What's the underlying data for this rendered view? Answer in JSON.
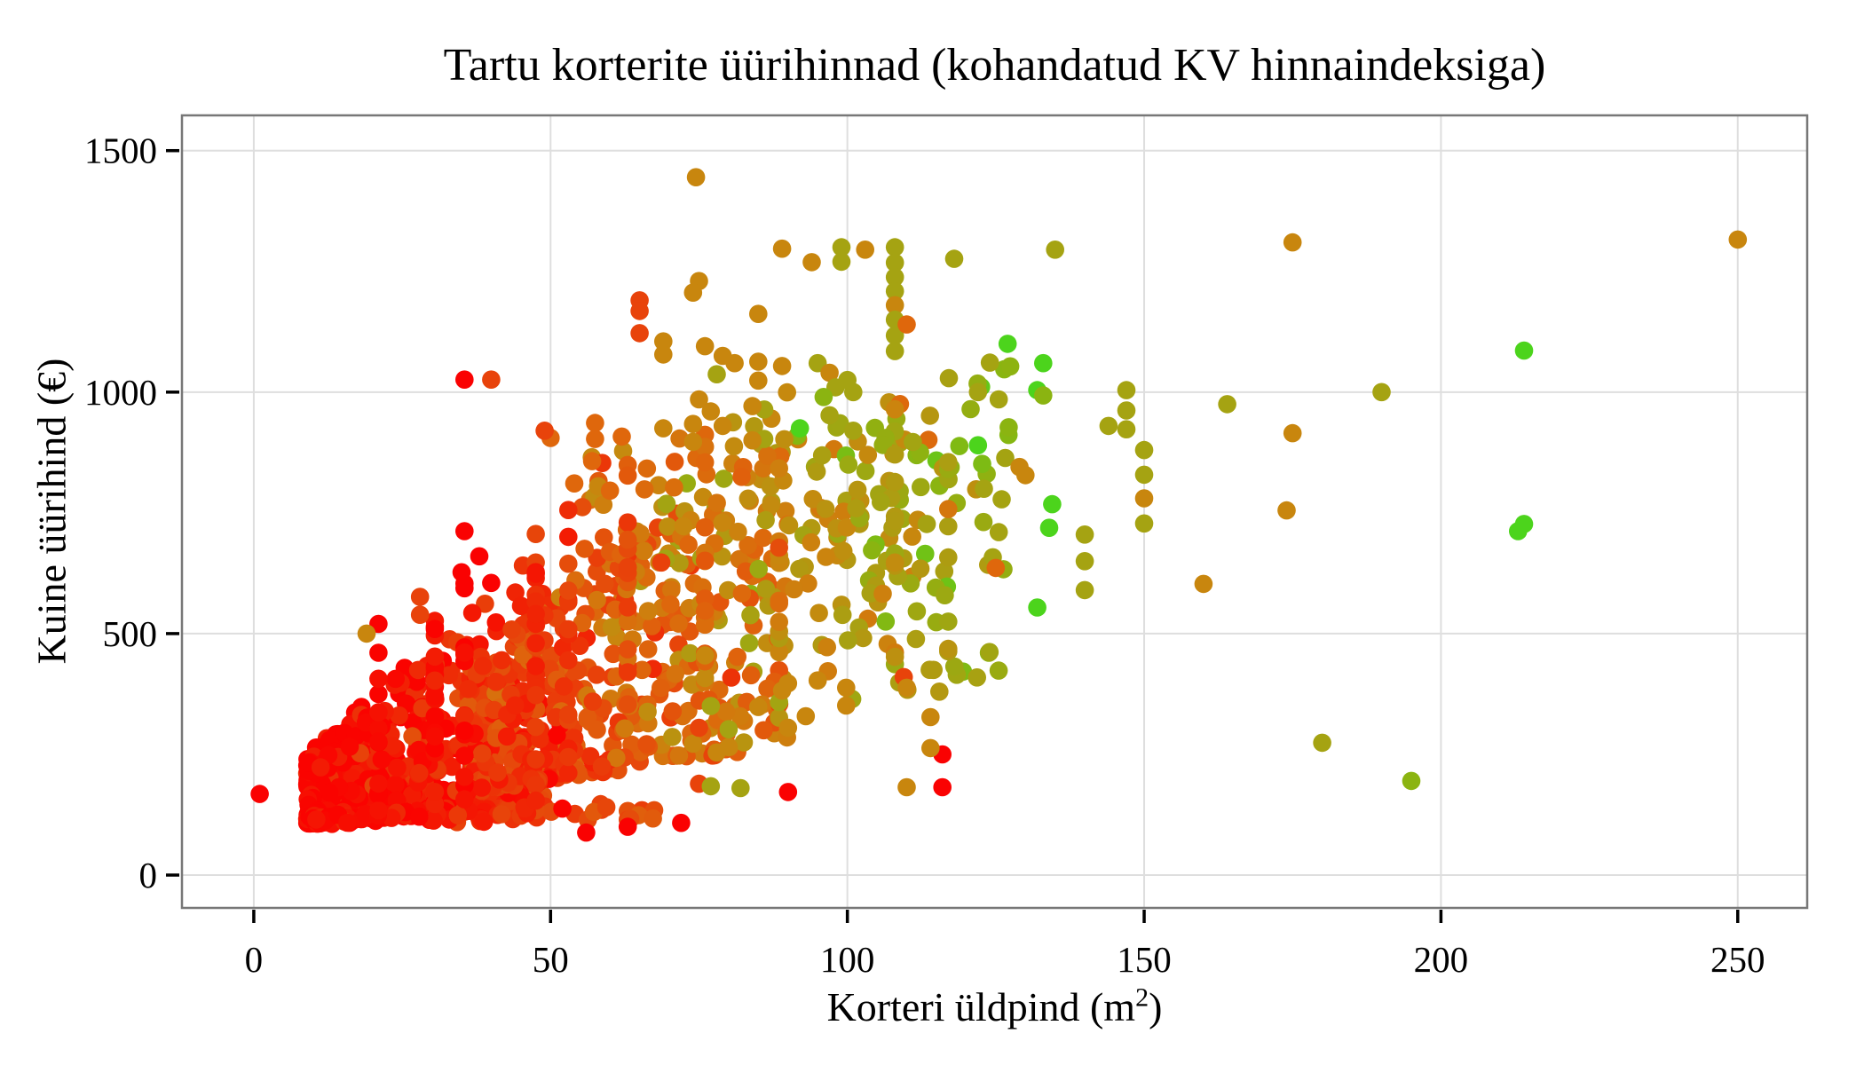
{
  "figure": {
    "title": "Tartu korterite üürihinnad (kohandatud KV hinnaindeksiga)",
    "y_axis_title": "Kuine üürihind (€)",
    "x_axis_title_main": "Korteri üldpind (m",
    "x_axis_title_sup": "2",
    "x_axis_title_end": ")"
  },
  "chart_data": {
    "type": "scatter",
    "title": "Tartu korterite üürihinnad (kohandatud KV hinnaindeksiga)",
    "xlabel": "Korteri üldpind (m2)",
    "ylabel": "Kuine üürihind (€)",
    "xlim": [
      -12.1,
      261.7
    ],
    "ylim": [
      -68,
      1573
    ],
    "x_ticks": [
      0,
      50,
      100,
      150,
      200,
      250
    ],
    "y_ticks": [
      0,
      500,
      1000,
      1500
    ],
    "grid": "major-only",
    "legend": "none",
    "style": {
      "grid_color": "#dedede",
      "border_color": "#777777",
      "tick_color": "#000000",
      "background": "#ffffff"
    },
    "palette": {
      "r": "#fa0202",
      "o2": "#e8430b",
      "o": "#df670c",
      "c": "#c8860e",
      "l": "#a5a312",
      "y": "#8bb411",
      "g": "#4cd41c"
    },
    "color_stops": [
      [
        0.0,
        "#fa0300"
      ],
      [
        0.14,
        "#f02505"
      ],
      [
        0.3,
        "#e64a0b"
      ],
      [
        0.44,
        "#dd690c"
      ],
      [
        0.57,
        "#c9860e"
      ],
      [
        0.7,
        "#a9a012"
      ],
      [
        0.82,
        "#8bb411"
      ],
      [
        1.0,
        "#4cd41c"
      ]
    ],
    "outlier_points": [
      [
        74.5,
        1445,
        "c"
      ],
      [
        250,
        1316,
        "c"
      ],
      [
        175,
        1310,
        "c"
      ],
      [
        135,
        1295,
        "l"
      ],
      [
        99,
        1300,
        "l"
      ],
      [
        99,
        1270,
        "l"
      ],
      [
        103,
        1295,
        "c"
      ],
      [
        94,
        1269,
        "c"
      ],
      [
        89,
        1297,
        "c"
      ],
      [
        108,
        1300,
        "l"
      ],
      [
        108,
        1268,
        "l"
      ],
      [
        108,
        1238,
        "l"
      ],
      [
        108,
        1209,
        "l"
      ],
      [
        108,
        1180,
        "c"
      ],
      [
        108,
        1150,
        "l"
      ],
      [
        108,
        1117,
        "l"
      ],
      [
        108,
        1085,
        "l"
      ],
      [
        110,
        1140,
        "o"
      ],
      [
        118,
        1276,
        "l"
      ],
      [
        75,
        1230,
        "c"
      ],
      [
        74,
        1206,
        "c"
      ],
      [
        65,
        1190,
        "o2"
      ],
      [
        65,
        1168,
        "o2"
      ],
      [
        65,
        1122,
        "o2"
      ],
      [
        69,
        1105,
        "c"
      ],
      [
        69,
        1078,
        "c"
      ],
      [
        85,
        1162,
        "c"
      ],
      [
        76,
        1095,
        "c"
      ],
      [
        79,
        1075,
        "c"
      ],
      [
        81,
        1060,
        "c"
      ],
      [
        78,
        1037,
        "l"
      ],
      [
        85,
        1063,
        "c"
      ],
      [
        85,
        1024,
        "c"
      ],
      [
        89,
        1054,
        "c"
      ],
      [
        95,
        1060,
        "l"
      ],
      [
        97,
        1040,
        "c"
      ],
      [
        98,
        1010,
        "l"
      ],
      [
        100,
        1025,
        "l"
      ],
      [
        101,
        1000,
        "l"
      ],
      [
        96,
        990,
        "y"
      ],
      [
        97,
        952,
        "l"
      ],
      [
        92,
        925,
        "g"
      ],
      [
        101,
        920,
        "l"
      ],
      [
        86,
        964,
        "l"
      ],
      [
        86,
        903,
        "l"
      ],
      [
        84,
        971,
        "c"
      ],
      [
        127,
        1100,
        "g"
      ],
      [
        133,
        1060,
        "g"
      ],
      [
        132,
        1004,
        "g"
      ],
      [
        133,
        993,
        "y"
      ],
      [
        124,
        1061,
        "l"
      ],
      [
        125.5,
        985,
        "l"
      ],
      [
        122,
        1000,
        "l"
      ],
      [
        214,
        1086,
        "g"
      ],
      [
        214,
        727,
        "g"
      ],
      [
        213,
        712,
        "g"
      ],
      [
        190,
        1000,
        "l"
      ],
      [
        164,
        975,
        "l"
      ],
      [
        175,
        915,
        "c"
      ],
      [
        174,
        755,
        "c"
      ],
      [
        160,
        603,
        "c"
      ],
      [
        180,
        274,
        "l"
      ],
      [
        195,
        195,
        "y"
      ],
      [
        147,
        1004,
        "l"
      ],
      [
        147,
        962,
        "l"
      ],
      [
        147,
        923,
        "l"
      ],
      [
        150,
        880,
        "l"
      ],
      [
        150,
        829,
        "l"
      ],
      [
        150,
        780,
        "c"
      ],
      [
        150,
        728,
        "l"
      ],
      [
        144,
        930,
        "l"
      ],
      [
        129,
        845,
        "c"
      ],
      [
        130,
        828,
        "c"
      ],
      [
        123,
        800,
        "l"
      ],
      [
        126,
        778,
        "l"
      ],
      [
        134.5,
        768,
        "g"
      ],
      [
        134,
        719,
        "g"
      ],
      [
        125.5,
        710,
        "l"
      ],
      [
        140,
        705,
        "l"
      ],
      [
        140,
        650,
        "l"
      ],
      [
        140,
        590,
        "l"
      ],
      [
        124.5,
        658,
        "l"
      ],
      [
        125,
        636,
        "o"
      ],
      [
        132,
        554,
        "g"
      ],
      [
        122,
        890,
        "g"
      ],
      [
        35.5,
        1026,
        "r"
      ],
      [
        40,
        1026,
        "o2"
      ],
      [
        1,
        168,
        "r"
      ],
      [
        90,
        172,
        "r"
      ],
      [
        116,
        250,
        "r"
      ],
      [
        116,
        182,
        "r"
      ],
      [
        82,
        180,
        "l"
      ],
      [
        110,
        182,
        "c"
      ],
      [
        114,
        263,
        "c"
      ],
      [
        114,
        327,
        "c"
      ],
      [
        63,
        100,
        "r"
      ],
      [
        56,
        88,
        "r"
      ],
      [
        72,
        108,
        "r"
      ],
      [
        35.5,
        712,
        "r"
      ],
      [
        38,
        660,
        "r"
      ],
      [
        35,
        627,
        "r"
      ],
      [
        35.5,
        594,
        "r"
      ],
      [
        40,
        605,
        "r"
      ],
      [
        50,
        905,
        "o"
      ],
      [
        57.5,
        936,
        "o"
      ],
      [
        57.5,
        903,
        "o"
      ],
      [
        62,
        908,
        "o"
      ],
      [
        69,
        925,
        "c"
      ],
      [
        74,
        934,
        "c"
      ],
      [
        74,
        897,
        "c"
      ],
      [
        75,
        985,
        "c"
      ],
      [
        77,
        960,
        "c"
      ],
      [
        79,
        930,
        "c"
      ],
      [
        84,
        900,
        "c"
      ],
      [
        54,
        811,
        "o"
      ],
      [
        57,
        857,
        "o"
      ],
      [
        58,
        805,
        "c"
      ],
      [
        60,
        796,
        "o"
      ],
      [
        49,
        920,
        "o2"
      ],
      [
        28,
        576,
        "o2"
      ],
      [
        28,
        539,
        "o2"
      ],
      [
        21,
        520,
        "r"
      ],
      [
        19,
        500,
        "c"
      ],
      [
        109.5,
        410,
        "o2"
      ],
      [
        110,
        388,
        "c"
      ],
      [
        99.8,
        388,
        "c"
      ],
      [
        99.8,
        351,
        "c"
      ],
      [
        95,
        403,
        "c"
      ],
      [
        93,
        329,
        "c"
      ],
      [
        90,
        305,
        "c"
      ],
      [
        85,
        348,
        "c"
      ],
      [
        89,
        382,
        "c"
      ],
      [
        90,
        397,
        "c"
      ],
      [
        78,
        254,
        "c"
      ],
      [
        80,
        265,
        "c"
      ],
      [
        80,
        302,
        "l"
      ],
      [
        74,
        272,
        "c"
      ],
      [
        75,
        305,
        "o2"
      ],
      [
        77,
        350,
        "l"
      ],
      [
        75,
        189,
        "o2"
      ],
      [
        77,
        184,
        "l"
      ]
    ],
    "generated_cloud": {
      "seed": 42,
      "y_cap": 1160,
      "clusters": [
        {
          "n": 520,
          "x": [
            9,
            49,
            1.65
          ],
          "y0": [
            98,
            0.9
          ],
          "y1": [
            150,
            11.0
          ],
          "yp": 1.8,
          "c": [
            -0.12,
            0.0062,
            0.00012,
            0.1
          ]
        },
        {
          "n": 430,
          "x": [
            36,
            90,
            1.25
          ],
          "y0": [
            100,
            1.9
          ],
          "y1": [
            60,
            10.5
          ],
          "yp": 1.55,
          "c": [
            -0.05,
            0.0058,
            0.00012,
            0.11
          ]
        },
        {
          "n": 150,
          "x": [
            55,
            118,
            1.0
          ],
          "y0": [
            430,
            1.2
          ],
          "y1": [
            700,
            3.0
          ],
          "yp": 1.0,
          "c": [
            0.1,
            0.0048,
            0.0001,
            0.09
          ]
        },
        {
          "n": 70,
          "x": [
            95,
            128,
            1.0
          ],
          "y0": [
            260,
            1.0
          ],
          "y1": [
            380,
            5.5
          ],
          "yp": 1.0,
          "c": [
            0.3,
            0.0032,
            8e-05,
            0.07
          ]
        },
        {
          "n": 80,
          "x": [
            10,
            68,
            1.5
          ],
          "y0": [
            104,
            0.15
          ],
          "y1": [
            118,
            0.5
          ],
          "yp": 1.0,
          "c": [
            -0.1,
            0.0058,
            0.0002,
            0.07
          ]
        }
      ],
      "columns": [
        {
          "x": 21,
          "n": 12,
          "y": [
            115,
            525
          ],
          "c": [
            0.02,
            0.05
          ]
        },
        {
          "x": 30.5,
          "n": 20,
          "y": [
            130,
            540
          ],
          "c": [
            0.05,
            0.06
          ]
        },
        {
          "x": 35.5,
          "n": 13,
          "y": [
            150,
            665
          ],
          "c": [
            0.03,
            0.05
          ]
        },
        {
          "x": 47.5,
          "n": 24,
          "y": [
            150,
            710
          ],
          "c": [
            0.17,
            0.08
          ]
        },
        {
          "x": 53,
          "n": 14,
          "y": [
            200,
            760
          ],
          "c": [
            0.22,
            0.08
          ]
        },
        {
          "x": 63,
          "n": 16,
          "y": [
            280,
            870
          ],
          "c": [
            0.33,
            0.09
          ]
        },
        {
          "x": 76,
          "n": 18,
          "y": [
            380,
            1005
          ],
          "c": [
            0.48,
            0.08
          ]
        },
        {
          "x": 88.5,
          "n": 13,
          "y": [
            320,
            905
          ],
          "c": [
            0.52,
            0.09
          ]
        },
        {
          "x": 108,
          "n": 11,
          "y": [
            430,
            985
          ],
          "c": [
            0.62,
            0.07
          ]
        },
        {
          "x": 117,
          "n": 8,
          "y": [
            420,
            900
          ],
          "c": [
            0.66,
            0.07
          ]
        }
      ]
    }
  }
}
